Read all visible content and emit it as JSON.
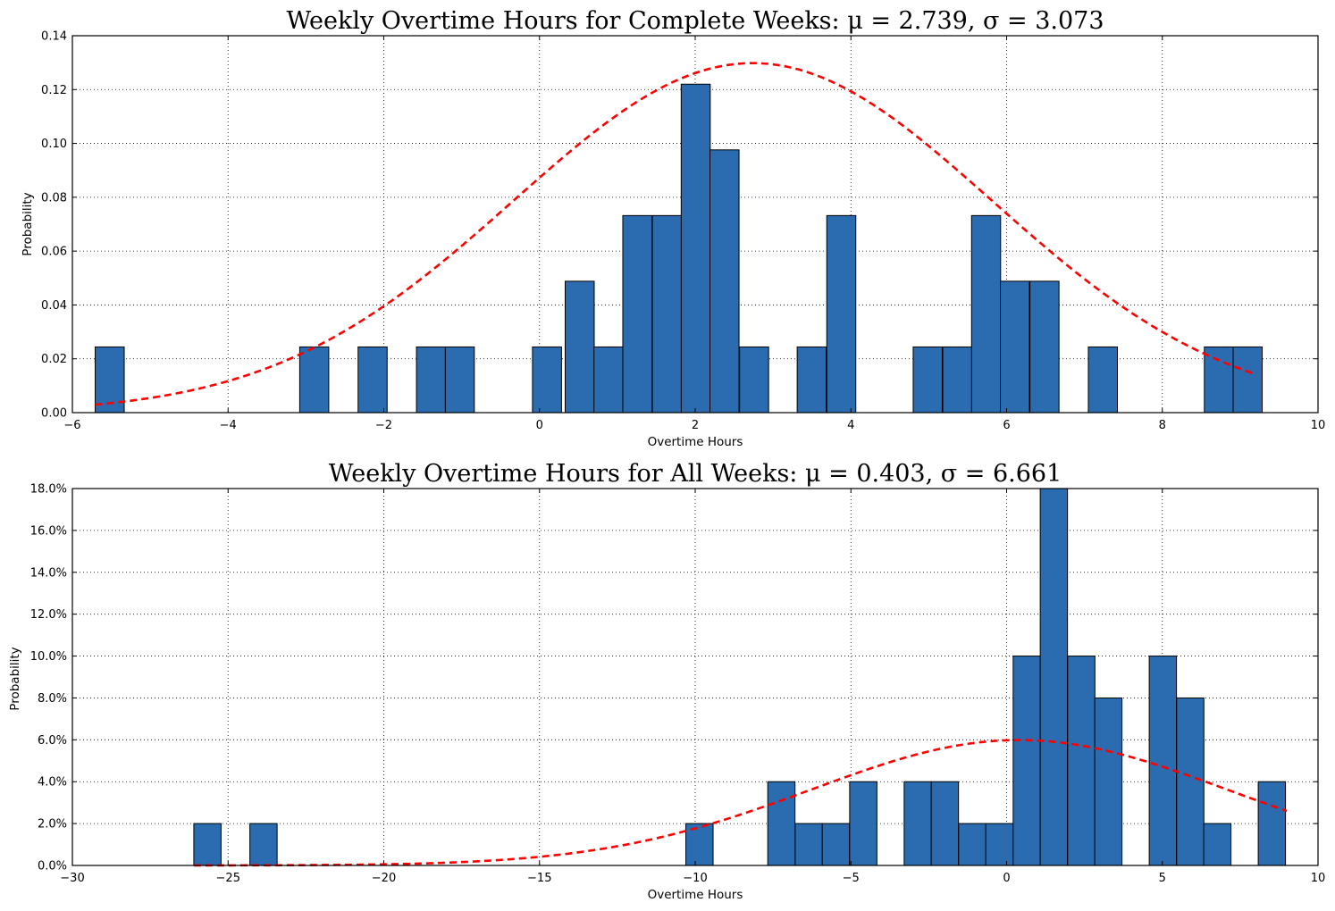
{
  "chart_data": [
    {
      "type": "bar",
      "title": "Weekly Overtime Hours for Complete Weeks:  μ = 2.739,  σ = 3.073",
      "xlabel": "Overtime Hours",
      "ylabel": "Probability",
      "xlim": [
        -6,
        10
      ],
      "ylim": [
        0,
        0.14
      ],
      "xticks": [
        -6,
        -4,
        -2,
        0,
        2,
        4,
        6,
        8,
        10
      ],
      "xtick_labels": [
        "−6",
        "−4",
        "−2",
        "0",
        "2",
        "4",
        "6",
        "8",
        "10"
      ],
      "yticks": [
        0,
        0.02,
        0.04,
        0.06,
        0.08,
        0.1,
        0.12,
        0.14
      ],
      "ytick_labels": [
        "0.00",
        "0.02",
        "0.04",
        "0.06",
        "0.08",
        "0.10",
        "0.12",
        "0.14"
      ],
      "grid": true,
      "bar_color": "#2b6cb0",
      "bin_width": 0.373,
      "bins": [
        {
          "x": -5.707,
          "value": 0.0244
        },
        {
          "x": -3.08,
          "value": 0.0244
        },
        {
          "x": -2.33,
          "value": 0.0244
        },
        {
          "x": -1.58,
          "value": 0.0244
        },
        {
          "x": -1.21,
          "value": 0.0244
        },
        {
          "x": -0.09,
          "value": 0.0244
        },
        {
          "x": 0.33,
          "value": 0.0488
        },
        {
          "x": 0.7,
          "value": 0.0244
        },
        {
          "x": 1.07,
          "value": 0.0732
        },
        {
          "x": 1.45,
          "value": 0.0732
        },
        {
          "x": 1.82,
          "value": 0.122
        },
        {
          "x": 2.19,
          "value": 0.0976
        },
        {
          "x": 2.57,
          "value": 0.0244
        },
        {
          "x": 3.31,
          "value": 0.0244
        },
        {
          "x": 3.69,
          "value": 0.0732
        },
        {
          "x": 4.8,
          "value": 0.0244
        },
        {
          "x": 5.18,
          "value": 0.0244
        },
        {
          "x": 5.55,
          "value": 0.0732
        },
        {
          "x": 5.92,
          "value": 0.0488
        },
        {
          "x": 6.3,
          "value": 0.0488
        },
        {
          "x": 7.05,
          "value": 0.0244
        },
        {
          "x": 8.54,
          "value": 0.0244
        },
        {
          "x": 8.91,
          "value": 0.0244
        }
      ],
      "fit": {
        "type": "normal",
        "mu": 2.739,
        "sigma": 3.073,
        "x_range": [
          -5.707,
          9.2
        ],
        "color": "#ff0000",
        "style": "dashed"
      }
    },
    {
      "type": "bar",
      "title": "Weekly Overtime Hours for All Weeks:  μ = 0.403,  σ = 6.661",
      "xlabel": "Overtime Hours",
      "ylabel": "Probability",
      "xlim": [
        -30,
        10
      ],
      "ylim": [
        0,
        0.18
      ],
      "xticks": [
        -30,
        -25,
        -20,
        -15,
        -10,
        -5,
        0,
        5,
        10
      ],
      "xtick_labels": [
        "−30",
        "−25",
        "−20",
        "−15",
        "−10",
        "−5",
        "0",
        "5",
        "10"
      ],
      "yticks": [
        0,
        0.02,
        0.04,
        0.06,
        0.08,
        0.1,
        0.12,
        0.14,
        0.16,
        0.18
      ],
      "ytick_labels": [
        "0.0%",
        "2.0%",
        "4.0%",
        "6.0%",
        "8.0%",
        "10.0%",
        "12.0%",
        "14.0%",
        "16.0%",
        "18.0%"
      ],
      "grid": true,
      "bar_color": "#2b6cb0",
      "bin_width": 0.875,
      "bins": [
        {
          "x": -26.1,
          "value": 0.02
        },
        {
          "x": -24.3,
          "value": 0.02
        },
        {
          "x": -10.3,
          "value": 0.02
        },
        {
          "x": -7.67,
          "value": 0.04
        },
        {
          "x": -6.79,
          "value": 0.02
        },
        {
          "x": -5.92,
          "value": 0.02
        },
        {
          "x": -5.04,
          "value": 0.04
        },
        {
          "x": -3.29,
          "value": 0.04
        },
        {
          "x": -2.42,
          "value": 0.04
        },
        {
          "x": -1.54,
          "value": 0.02
        },
        {
          "x": -0.67,
          "value": 0.02
        },
        {
          "x": 0.21,
          "value": 0.1
        },
        {
          "x": 1.08,
          "value": 0.18
        },
        {
          "x": 1.96,
          "value": 0.1
        },
        {
          "x": 2.83,
          "value": 0.08
        },
        {
          "x": 4.58,
          "value": 0.1
        },
        {
          "x": 5.46,
          "value": 0.08
        },
        {
          "x": 6.33,
          "value": 0.02
        },
        {
          "x": 8.08,
          "value": 0.04
        }
      ],
      "fit": {
        "type": "normal",
        "mu": 0.403,
        "sigma": 6.661,
        "x_range": [
          -26.1,
          9.0
        ],
        "color": "#ff0000",
        "style": "dashed"
      }
    }
  ]
}
